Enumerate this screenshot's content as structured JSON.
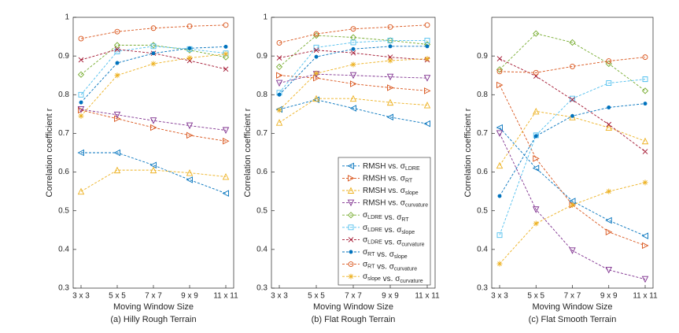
{
  "chart_data": [
    {
      "type": "line",
      "subtitle": "(a) Hilly Rough Terrain",
      "xlabel": "Moving Window Size",
      "ylabel": "Correlation coefficient r",
      "categories": [
        "3 x 3",
        "5 x 5",
        "7 x 7",
        "9 x 9",
        "11 x 11"
      ],
      "ylim": [
        0.3,
        1
      ],
      "yticks": [
        0.3,
        0.4,
        0.5,
        0.6,
        0.7,
        0.8,
        0.9,
        1
      ],
      "series": [
        {
          "color": "#0072BD",
          "marker": "tl",
          "values": [
            0.65,
            0.65,
            0.618,
            0.58,
            0.545
          ]
        },
        {
          "color": "#D95319",
          "marker": "tr",
          "values": [
            0.76,
            0.738,
            0.715,
            0.695,
            0.68
          ]
        },
        {
          "color": "#EDB120",
          "marker": "tu",
          "values": [
            0.55,
            0.605,
            0.605,
            0.598,
            0.588
          ]
        },
        {
          "color": "#7E2F8E",
          "marker": "td",
          "values": [
            0.762,
            0.748,
            0.733,
            0.72,
            0.708
          ]
        },
        {
          "color": "#77AC30",
          "marker": "d",
          "values": [
            0.852,
            0.928,
            0.928,
            0.915,
            0.897
          ]
        },
        {
          "color": "#4DBEEE",
          "marker": "s",
          "values": [
            0.8,
            0.912,
            0.925,
            0.918,
            0.907
          ]
        },
        {
          "color": "#A2142F",
          "marker": "x",
          "values": [
            0.89,
            0.917,
            0.907,
            0.888,
            0.866
          ]
        },
        {
          "color": "#0072BD",
          "marker": "dot",
          "values": [
            0.78,
            0.882,
            0.907,
            0.92,
            0.924
          ]
        },
        {
          "color": "#D95319",
          "marker": "o",
          "values": [
            0.945,
            0.963,
            0.972,
            0.977,
            0.98
          ]
        },
        {
          "color": "#EDB120",
          "marker": "star",
          "values": [
            0.745,
            0.85,
            0.88,
            0.895,
            0.905
          ]
        }
      ]
    },
    {
      "type": "line",
      "subtitle": "(b) Flat Rough Terrain",
      "xlabel": "Moving Window Size",
      "ylabel": "Correlation coefficient r",
      "categories": [
        "3 x 3",
        "5 x 5",
        "7 x 7",
        "9 x 9",
        "11 x 11"
      ],
      "ylim": [
        0.3,
        1
      ],
      "yticks": [
        0.3,
        0.4,
        0.5,
        0.6,
        0.7,
        0.8,
        0.9,
        1
      ],
      "legend": "southeast",
      "series": [
        {
          "name": "RMSH vs. σLDRE",
          "color": "#0072BD",
          "marker": "tl",
          "values": [
            0.762,
            0.787,
            0.765,
            0.742,
            0.725
          ]
        },
        {
          "name": "RMSH vs. σRT",
          "color": "#D95319",
          "marker": "tr",
          "values": [
            0.85,
            0.843,
            0.828,
            0.818,
            0.81
          ]
        },
        {
          "name": "RMSH vs. σslope",
          "color": "#EDB120",
          "marker": "tu",
          "values": [
            0.728,
            0.79,
            0.79,
            0.78,
            0.773
          ]
        },
        {
          "name": "RMSH vs. σcurvature",
          "color": "#7E2F8E",
          "marker": "td",
          "values": [
            0.83,
            0.853,
            0.85,
            0.846,
            0.843
          ]
        },
        {
          "name": "σLDRE vs. σRT",
          "color": "#77AC30",
          "marker": "d",
          "values": [
            0.872,
            0.953,
            0.948,
            0.94,
            0.93
          ]
        },
        {
          "name": "σLDRE vs. σslope",
          "color": "#4DBEEE",
          "marker": "s",
          "values": [
            0.805,
            0.922,
            0.935,
            0.94,
            0.94
          ]
        },
        {
          "name": "σLDRE vs. σcurvature",
          "color": "#A2142F",
          "marker": "x",
          "values": [
            0.895,
            0.915,
            0.908,
            0.897,
            0.89
          ]
        },
        {
          "name": "σRT vs. σslope",
          "color": "#0072BD",
          "marker": "dot",
          "values": [
            0.8,
            0.898,
            0.918,
            0.925,
            0.925
          ]
        },
        {
          "name": "σRT vs. σcurvature",
          "color": "#D95319",
          "marker": "o",
          "values": [
            0.934,
            0.957,
            0.97,
            0.975,
            0.98
          ]
        },
        {
          "name": "σslope vs. σcurvature",
          "color": "#EDB120",
          "marker": "star",
          "values": [
            0.76,
            0.855,
            0.878,
            0.888,
            0.893
          ]
        }
      ]
    },
    {
      "type": "line",
      "subtitle": "(c) Flat Smooth Terrain",
      "xlabel": "Moving Window Size",
      "ylabel": "Correlation coefficient r",
      "categories": [
        "3 x 3",
        "5 x 5",
        "7 x 7",
        "9 x 9",
        "11 x 11"
      ],
      "ylim": [
        0.3,
        1
      ],
      "yticks": [
        0.3,
        0.4,
        0.5,
        0.6,
        0.7,
        0.8,
        0.9
      ],
      "series": [
        {
          "color": "#0072BD",
          "marker": "tl",
          "values": [
            0.715,
            0.61,
            0.525,
            0.475,
            0.435
          ]
        },
        {
          "color": "#D95319",
          "marker": "tr",
          "values": [
            0.825,
            0.635,
            0.515,
            0.445,
            0.41
          ]
        },
        {
          "color": "#EDB120",
          "marker": "tu",
          "values": [
            0.617,
            0.757,
            0.742,
            0.715,
            0.68
          ]
        },
        {
          "color": "#7E2F8E",
          "marker": "td",
          "values": [
            0.7,
            0.503,
            0.397,
            0.347,
            0.323
          ]
        },
        {
          "color": "#77AC30",
          "marker": "d",
          "values": [
            0.865,
            0.958,
            0.935,
            0.88,
            0.81
          ]
        },
        {
          "color": "#4DBEEE",
          "marker": "s",
          "values": [
            0.437,
            0.695,
            0.79,
            0.83,
            0.84
          ]
        },
        {
          "color": "#A2142F",
          "marker": "x",
          "values": [
            0.893,
            0.848,
            0.787,
            0.723,
            0.653
          ]
        },
        {
          "color": "#0072BD",
          "marker": "dot",
          "values": [
            0.538,
            0.693,
            0.745,
            0.767,
            0.777
          ]
        },
        {
          "color": "#D95319",
          "marker": "o",
          "values": [
            0.86,
            0.857,
            0.873,
            0.887,
            0.897
          ]
        },
        {
          "color": "#EDB120",
          "marker": "star",
          "values": [
            0.363,
            0.467,
            0.515,
            0.55,
            0.573
          ]
        }
      ]
    }
  ]
}
